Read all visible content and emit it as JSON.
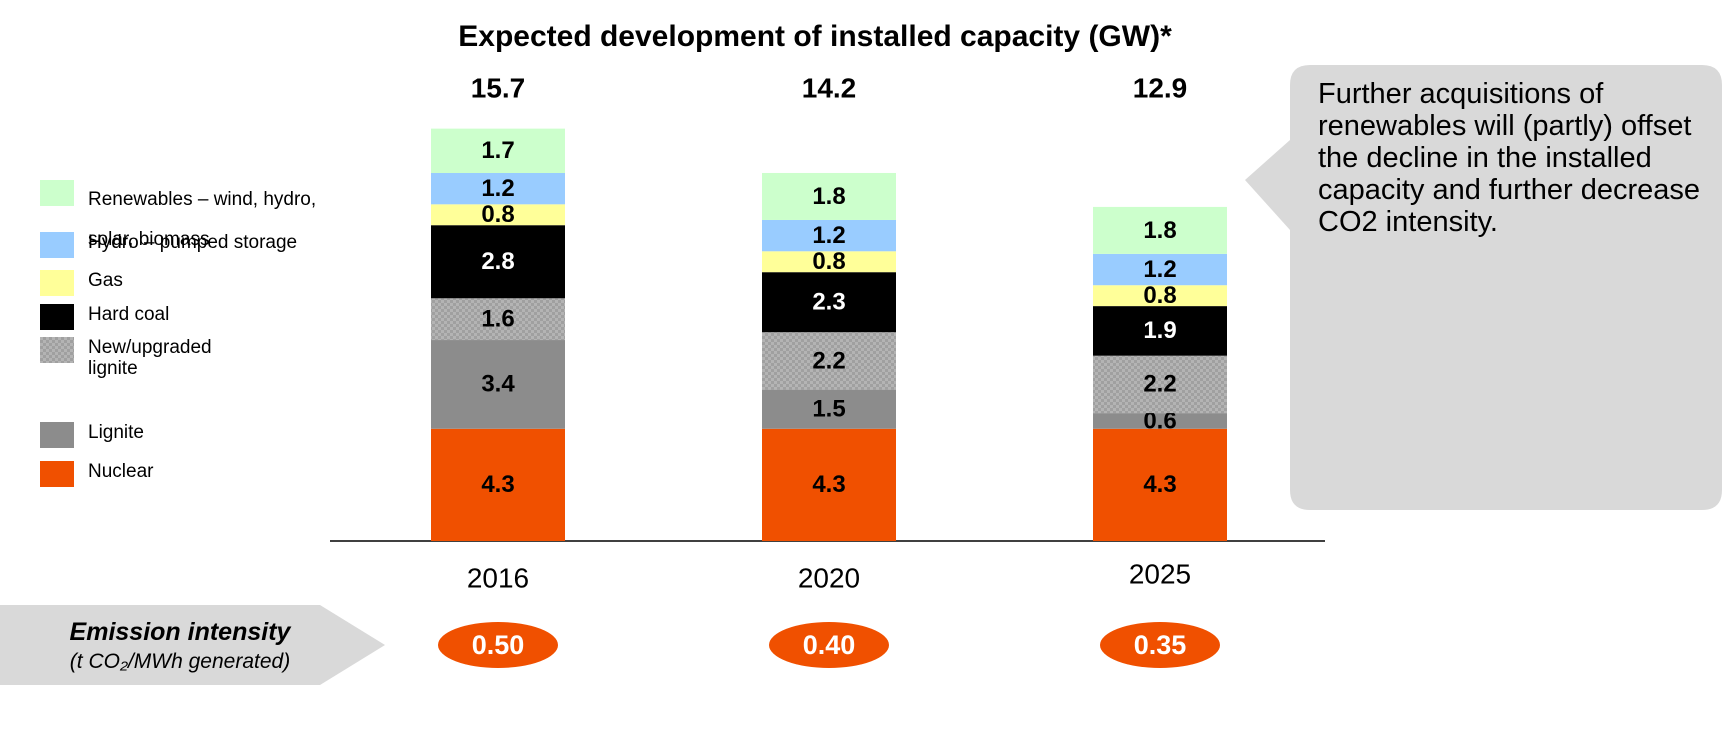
{
  "chart_data": {
    "type": "stacked_bar",
    "title": "Expected development of installed capacity (GW)*",
    "categories": [
      "2016",
      "2020",
      "2025"
    ],
    "series": [
      {
        "name": "Nuclear",
        "color": "#f05000",
        "values": [
          4.3,
          4.3,
          4.3
        ]
      },
      {
        "name": "Lignite",
        "color": "#8c8c8c",
        "values": [
          3.4,
          1.5,
          0.6
        ]
      },
      {
        "name": "New/upgraded lignite",
        "color": "#b4b4b4",
        "pattern": "checker",
        "values": [
          1.6,
          2.2,
          2.2
        ]
      },
      {
        "name": "Hard coal",
        "color": "#000000",
        "values": [
          2.8,
          2.3,
          1.9
        ]
      },
      {
        "name": "Gas",
        "color": "#ffff99",
        "values": [
          0.8,
          0.8,
          0.8
        ]
      },
      {
        "name": "Hydro – pumped storage",
        "color": "#99ccff",
        "values": [
          1.2,
          1.2,
          1.2
        ]
      },
      {
        "name": "Renewables – wind, hydro, solar, biomass",
        "color": "#ccffcc",
        "values": [
          1.7,
          1.8,
          1.8
        ]
      }
    ],
    "totals": [
      15.7,
      14.2,
      12.9
    ],
    "emission_intensity": {
      "label": "Emission intensity",
      "unit": "(t CO₂/MWh generated)",
      "color": "#f05000",
      "values": [
        0.5,
        0.4,
        0.35
      ],
      "value_labels": [
        "0.50",
        "0.40",
        "0.35"
      ]
    },
    "callout": "Further acquisitions of renewables will (partly) offset the decline in the installed capacity and further decrease CO2 intensity."
  }
}
